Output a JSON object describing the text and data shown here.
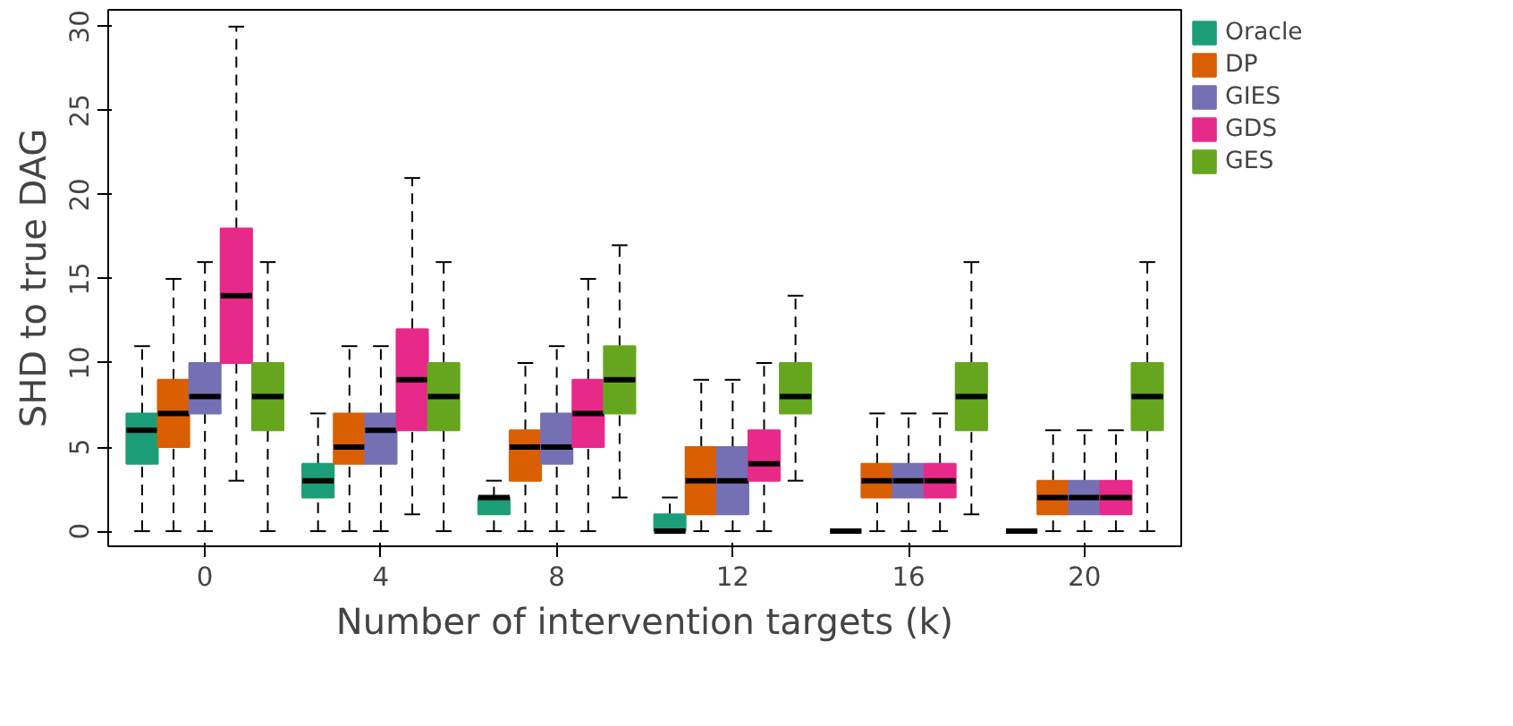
{
  "chart_data": {
    "type": "box",
    "xlabel": "Number of intervention targets (k)",
    "ylabel": "SHD to true DAG",
    "categories": [
      "0",
      "4",
      "8",
      "12",
      "16",
      "20"
    ],
    "ylim": [
      -0.9,
      31
    ],
    "yticks": [
      0,
      5,
      10,
      15,
      20,
      25,
      30
    ],
    "grid": false,
    "legend": "top right",
    "series": [
      {
        "name": "Oracle",
        "color": "#1b9e77",
        "boxes": [
          {
            "low": 0,
            "q1": 4,
            "median": 6,
            "q3": 7,
            "high": 11
          },
          {
            "low": 0,
            "q1": 2,
            "median": 3,
            "q3": 4,
            "high": 7
          },
          {
            "low": 0,
            "q1": 1,
            "median": 2,
            "q3": 2,
            "high": 3
          },
          {
            "low": 0,
            "q1": 0,
            "median": 0,
            "q3": 1,
            "high": 2
          },
          {
            "low": 0,
            "q1": 0,
            "median": 0,
            "q3": 0,
            "high": 0
          },
          {
            "low": 0,
            "q1": 0,
            "median": 0,
            "q3": 0,
            "high": 0
          }
        ]
      },
      {
        "name": "DP",
        "color": "#d95f02",
        "boxes": [
          {
            "low": 0,
            "q1": 5,
            "median": 7,
            "q3": 9,
            "high": 15
          },
          {
            "low": 0,
            "q1": 4,
            "median": 5,
            "q3": 7,
            "high": 11
          },
          {
            "low": 0,
            "q1": 3,
            "median": 5,
            "q3": 6,
            "high": 10
          },
          {
            "low": 0,
            "q1": 1,
            "median": 3,
            "q3": 5,
            "high": 9
          },
          {
            "low": 0,
            "q1": 2,
            "median": 3,
            "q3": 4,
            "high": 7
          },
          {
            "low": 0,
            "q1": 1,
            "median": 2,
            "q3": 3,
            "high": 6
          }
        ]
      },
      {
        "name": "GIES",
        "color": "#7570b3",
        "boxes": [
          {
            "low": 0,
            "q1": 7,
            "median": 8,
            "q3": 10,
            "high": 16
          },
          {
            "low": 0,
            "q1": 4,
            "median": 6,
            "q3": 7,
            "high": 11
          },
          {
            "low": 0,
            "q1": 4,
            "median": 5,
            "q3": 7,
            "high": 11
          },
          {
            "low": 0,
            "q1": 1,
            "median": 3,
            "q3": 5,
            "high": 9
          },
          {
            "low": 0,
            "q1": 2,
            "median": 3,
            "q3": 4,
            "high": 7
          },
          {
            "low": 0,
            "q1": 1,
            "median": 2,
            "q3": 3,
            "high": 6
          }
        ]
      },
      {
        "name": "GDS",
        "color": "#e7298a",
        "boxes": [
          {
            "low": 3,
            "q1": 10,
            "median": 14,
            "q3": 18,
            "high": 30
          },
          {
            "low": 1,
            "q1": 6,
            "median": 9,
            "q3": 12,
            "high": 21
          },
          {
            "low": 0,
            "q1": 5,
            "median": 7,
            "q3": 9,
            "high": 15
          },
          {
            "low": 0,
            "q1": 3,
            "median": 4,
            "q3": 6,
            "high": 10
          },
          {
            "low": 0,
            "q1": 2,
            "median": 3,
            "q3": 4,
            "high": 7
          },
          {
            "low": 0,
            "q1": 1,
            "median": 2,
            "q3": 3,
            "high": 6
          }
        ]
      },
      {
        "name": "GES",
        "color": "#66a61e",
        "boxes": [
          {
            "low": 0,
            "q1": 6,
            "median": 8,
            "q3": 10,
            "high": 16
          },
          {
            "low": 0,
            "q1": 6,
            "median": 8,
            "q3": 10,
            "high": 16
          },
          {
            "low": 2,
            "q1": 7,
            "median": 9,
            "q3": 11,
            "high": 17
          },
          {
            "low": 3,
            "q1": 7,
            "median": 8,
            "q3": 10,
            "high": 14
          },
          {
            "low": 1,
            "q1": 6,
            "median": 8,
            "q3": 10,
            "high": 16
          },
          {
            "low": 0,
            "q1": 6,
            "median": 8,
            "q3": 10,
            "high": 16
          }
        ]
      }
    ]
  }
}
